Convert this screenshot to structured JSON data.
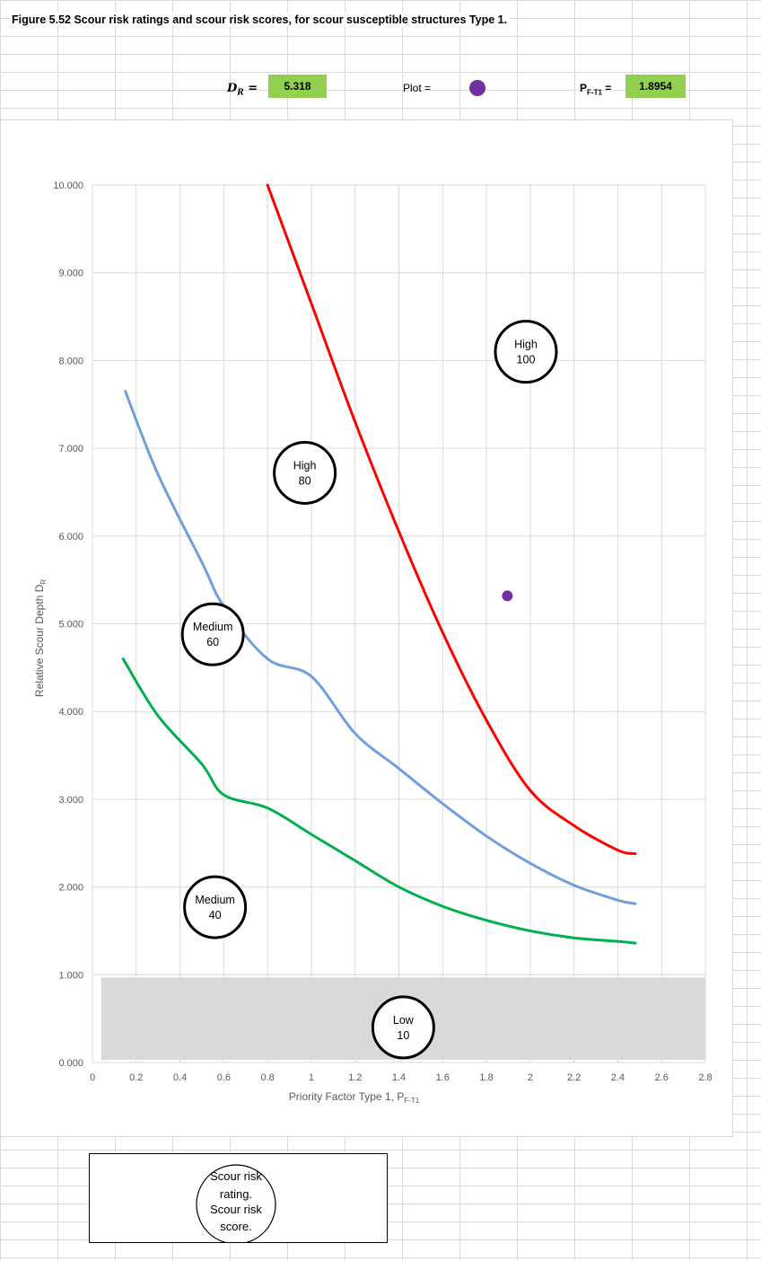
{
  "caption": "Figure 5.52 Scour risk ratings and scour risk scores, for scour susceptible structures Type 1.",
  "header": {
    "dr_label": "D",
    "dr_sub": "R",
    "dr_eq": " =",
    "dr_value": "5.318",
    "plot_label": "Plot =",
    "pf_label": "P",
    "pf_sub": "F-T1",
    "pf_eq": " =",
    "pf_value": "1.8954"
  },
  "colors": {
    "high_curve": "#ff0000",
    "medium_curve": "#6f9fdc",
    "low_curve": "#00b050",
    "plot_point": "#7030a0",
    "low_band": "#d9d9d9",
    "value_cells": "#92d050"
  },
  "legend": {
    "lines": [
      "Scour risk",
      "rating.",
      "Scour risk",
      "score."
    ]
  },
  "chart_data": {
    "type": "line",
    "xlabel": "Priority Factor Type 1, P",
    "xlabel_sub": "F-T1",
    "ylabel": "Relative Scour Depth D",
    "ylabel_sub": "R",
    "xlim": [
      0,
      2.8
    ],
    "ylim": [
      0,
      10
    ],
    "x_ticks": [
      "0",
      "0.2",
      "0.4",
      "0.6",
      "0.8",
      "1",
      "1.2",
      "1.4",
      "1.6",
      "1.8",
      "2",
      "2.2",
      "2.4",
      "2.6",
      "2.8"
    ],
    "y_ticks": [
      "0.000",
      "1.000",
      "2.000",
      "3.000",
      "4.000",
      "5.000",
      "6.000",
      "7.000",
      "8.000",
      "9.000",
      "10.000"
    ],
    "grid": true,
    "series": [
      {
        "x": [
          0.8,
          1.0,
          1.2,
          1.4,
          1.6,
          1.8,
          2.0,
          2.2,
          2.4,
          2.48
        ],
        "y": [
          10.0,
          8.65,
          7.3,
          6.05,
          4.9,
          3.9,
          3.1,
          2.7,
          2.42,
          2.38
        ]
      },
      {
        "x": [
          0.15,
          0.3,
          0.5,
          0.6,
          0.8,
          1.0,
          1.2,
          1.4,
          1.6,
          1.8,
          2.0,
          2.2,
          2.4,
          2.48
        ],
        "y": [
          7.65,
          6.7,
          5.7,
          5.2,
          4.6,
          4.4,
          3.75,
          3.35,
          2.95,
          2.58,
          2.27,
          2.02,
          1.85,
          1.81
        ]
      },
      {
        "x": [
          0.14,
          0.3,
          0.5,
          0.6,
          0.8,
          1.0,
          1.2,
          1.4,
          1.6,
          1.8,
          2.0,
          2.2,
          2.4,
          2.48
        ],
        "y": [
          4.6,
          3.95,
          3.4,
          3.05,
          2.9,
          2.6,
          2.3,
          2.0,
          1.78,
          1.62,
          1.5,
          1.42,
          1.38,
          1.36
        ]
      }
    ],
    "point": {
      "x": 1.8954,
      "y": 5.318
    },
    "low_band": {
      "y": [
        0,
        1
      ]
    },
    "ratings": [
      {
        "rating": "High",
        "score": "100",
        "x": 1.98,
        "y": 8.1
      },
      {
        "rating": "High",
        "score": "80",
        "x": 0.97,
        "y": 6.72
      },
      {
        "rating": "Medium",
        "score": "60",
        "x": 0.55,
        "y": 4.88
      },
      {
        "rating": "Medium",
        "score": "40",
        "x": 0.56,
        "y": 1.77
      },
      {
        "rating": "Low",
        "score": "10",
        "x": 1.42,
        "y": 0.4
      }
    ]
  }
}
